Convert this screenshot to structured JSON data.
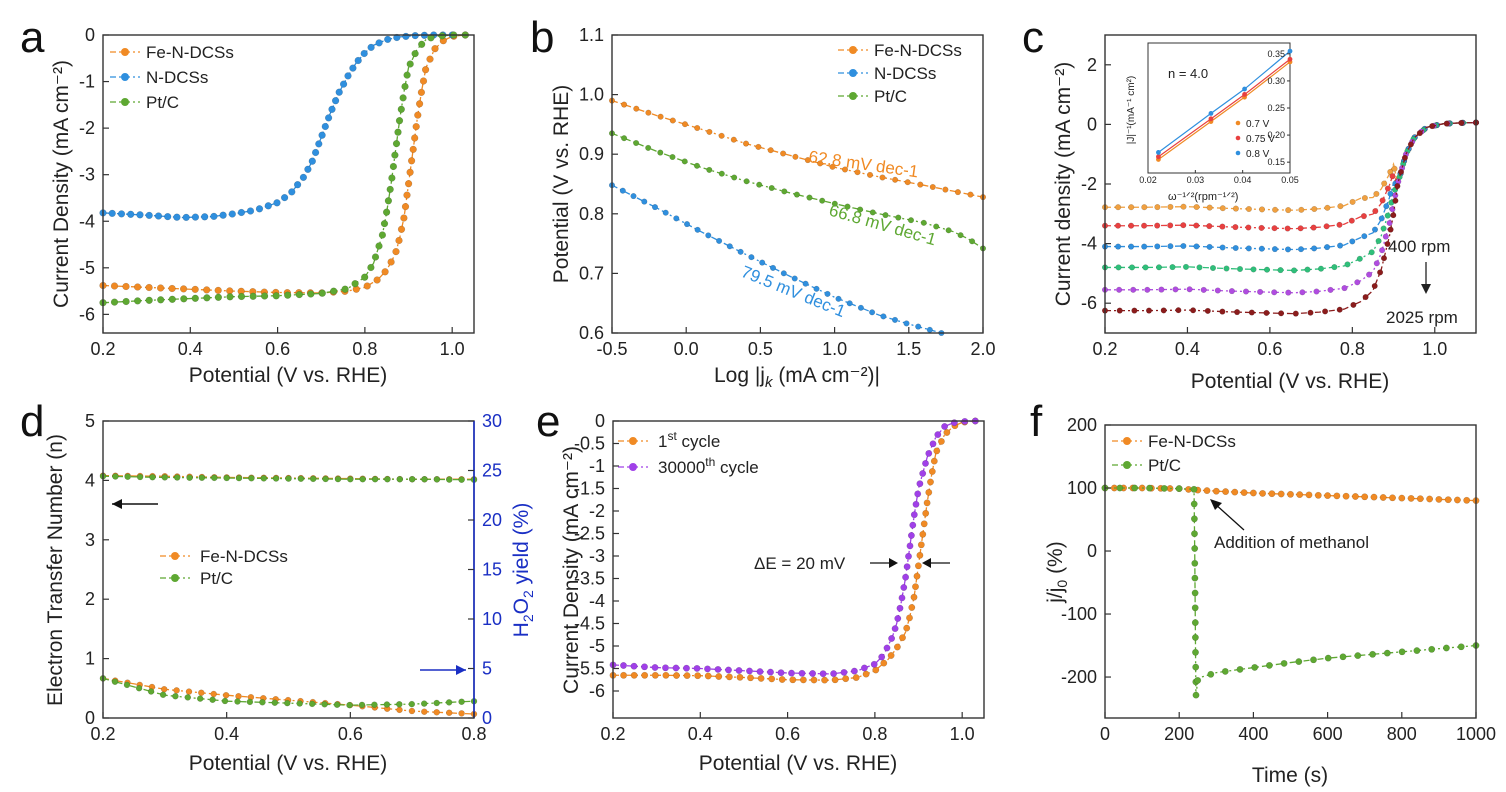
{
  "colors": {
    "fe": "#f08a24",
    "n": "#2f8fde",
    "pt": "#5ea832",
    "orange": "#f08a24",
    "purple": "#a040e8",
    "blue_axis": "#1a2fc4",
    "c_series": [
      "#f0a040",
      "#e84040",
      "#2f8fde",
      "#2fbf7a",
      "#b04ce0",
      "#8b1c1c"
    ],
    "inset": [
      "#f08a24",
      "#e84040",
      "#2f8fde"
    ]
  },
  "chart_data": [
    {
      "panel": "a",
      "type": "line",
      "xlabel": "Potential (V vs. RHE)",
      "ylabel": "Current Density (mA cm⁻²)",
      "xlim": [
        0.2,
        1.05
      ],
      "ylim": [
        -6.4,
        0
      ],
      "xticks": [
        "0.2",
        "0.4",
        "0.6",
        "0.8",
        "1.0"
      ],
      "yticks": [
        "0",
        "-1",
        "-2",
        "-3",
        "-4",
        "-5",
        "-6"
      ],
      "series": [
        {
          "name": "Fe-N-DCSs",
          "color": "fe",
          "x": [
            0.2,
            0.3,
            0.4,
            0.5,
            0.6,
            0.7,
            0.76,
            0.8,
            0.83,
            0.85,
            0.87,
            0.88,
            0.89,
            0.9,
            0.91,
            0.92,
            0.93,
            0.94,
            0.96,
            0.98,
            1.0,
            1.03
          ],
          "y": [
            -5.38,
            -5.42,
            -5.46,
            -5.5,
            -5.53,
            -5.54,
            -5.5,
            -5.42,
            -5.25,
            -5.05,
            -4.7,
            -4.35,
            -3.9,
            -3.2,
            -2.5,
            -1.8,
            -1.2,
            -0.7,
            -0.3,
            -0.12,
            -0.03,
            0
          ]
        },
        {
          "name": "N-DCSs",
          "color": "n",
          "x": [
            0.2,
            0.3,
            0.38,
            0.45,
            0.5,
            0.55,
            0.6,
            0.63,
            0.66,
            0.68,
            0.7,
            0.72,
            0.74,
            0.76,
            0.78,
            0.8,
            0.82,
            0.85,
            0.88,
            0.92,
            0.96,
            1.0
          ],
          "y": [
            -3.82,
            -3.87,
            -3.92,
            -3.9,
            -3.84,
            -3.76,
            -3.6,
            -3.4,
            -3.05,
            -2.7,
            -2.2,
            -1.7,
            -1.25,
            -0.9,
            -0.6,
            -0.38,
            -0.22,
            -0.1,
            -0.04,
            -0.01,
            0,
            0
          ]
        },
        {
          "name": "Pt/C",
          "color": "pt",
          "x": [
            0.2,
            0.3,
            0.4,
            0.5,
            0.6,
            0.7,
            0.76,
            0.8,
            0.82,
            0.84,
            0.85,
            0.86,
            0.87,
            0.88,
            0.89,
            0.9,
            0.92,
            0.94,
            0.96,
            1.0,
            1.03
          ],
          "y": [
            -5.75,
            -5.7,
            -5.66,
            -5.62,
            -5.6,
            -5.55,
            -5.45,
            -5.2,
            -4.9,
            -4.3,
            -3.8,
            -3.2,
            -2.5,
            -1.8,
            -1.2,
            -0.7,
            -0.3,
            -0.1,
            -0.03,
            0,
            0
          ]
        }
      ]
    },
    {
      "panel": "b",
      "type": "line",
      "xlabel": "Log |j",
      "xlabel_sub": "k",
      "xlabel_tail": " (mA cm⁻²)|",
      "ylabel": "Potential (V vs. RHE)",
      "xlim": [
        -0.5,
        2.0
      ],
      "ylim": [
        0.6,
        1.1
      ],
      "xticks": [
        "-0.5",
        "0.0",
        "0.5",
        "1.0",
        "1.5",
        "2.0"
      ],
      "yticks": [
        "0.6",
        "0.7",
        "0.8",
        "0.9",
        "1.0",
        "1.1"
      ],
      "annotations": [
        "62.8 mV dec-1",
        "66.8 mV dec-1",
        "79.5 mV dec-1"
      ],
      "series": [
        {
          "name": "Fe-N-DCSs",
          "color": "fe",
          "x": [
            -0.5,
            -0.2,
            0.1,
            0.4,
            0.7,
            1.0,
            1.3,
            1.6,
            1.8,
            2.0
          ],
          "y": [
            0.99,
            0.965,
            0.942,
            0.918,
            0.898,
            0.878,
            0.862,
            0.848,
            0.838,
            0.828
          ]
        },
        {
          "name": "N-DCSs",
          "color": "n",
          "x": [
            -0.5,
            -0.2,
            0.1,
            0.4,
            0.7,
            1.0,
            1.3,
            1.5,
            1.72
          ],
          "y": [
            0.848,
            0.81,
            0.77,
            0.732,
            0.695,
            0.66,
            0.63,
            0.615,
            0.6
          ]
        },
        {
          "name": "Pt/C",
          "color": "pt",
          "x": [
            -0.5,
            -0.2,
            0.1,
            0.4,
            0.7,
            1.0,
            1.3,
            1.6,
            1.8,
            1.9,
            2.0
          ],
          "y": [
            0.935,
            0.905,
            0.878,
            0.855,
            0.835,
            0.817,
            0.8,
            0.785,
            0.77,
            0.758,
            0.742
          ]
        }
      ]
    },
    {
      "panel": "c",
      "type": "line",
      "xlabel": "Potential (V vs. RHE)",
      "ylabel": "Current density (mA cm⁻²)",
      "xlim": [
        0.2,
        1.1
      ],
      "ylim": [
        -7,
        3
      ],
      "xticks": [
        "0.2",
        "0.4",
        "0.6",
        "0.8",
        "1.0"
      ],
      "yticks": [
        "2",
        "0",
        "-2",
        "-4",
        "-6"
      ],
      "ytick_values": [
        2,
        0,
        -2,
        -4,
        -6
      ],
      "annotations": [
        "400 rpm",
        "2025 rpm"
      ],
      "plateaus": [
        -2.78,
        -3.4,
        -4.1,
        -4.8,
        -5.55,
        -6.25
      ],
      "inset": {
        "title": "n = 4.0",
        "xlabel": "ω⁻¹ᐟ²(rpm⁻¹ᐟ²)",
        "ylabel": "|J|⁻¹(mA⁻¹ cm²)",
        "xlim": [
          0.02,
          0.05
        ],
        "ylim": [
          0.13,
          0.37
        ],
        "xticks": [
          "0.02",
          "0.03",
          "0.04",
          "0.05"
        ],
        "yticks": [
          "0.15",
          "0.20",
          "0.25",
          "0.30",
          "0.35"
        ],
        "series": [
          {
            "name": "0.7 V",
            "x": [
              0.0222,
              0.0333,
              0.0404,
              0.05
            ],
            "y": [
              0.155,
              0.225,
              0.27,
              0.335
            ]
          },
          {
            "name": "0.75 V",
            "x": [
              0.0222,
              0.0333,
              0.0404,
              0.05
            ],
            "y": [
              0.16,
              0.23,
              0.275,
              0.34
            ]
          },
          {
            "name": "0.8 V",
            "x": [
              0.0222,
              0.0333,
              0.0404,
              0.05
            ],
            "y": [
              0.168,
              0.24,
              0.285,
              0.355
            ]
          }
        ]
      }
    },
    {
      "panel": "d",
      "type": "line",
      "xlabel": "Potential (V vs. RHE)",
      "ylabel": "Electron Transfer Number (n)",
      "ylabel2_pre": "H",
      "ylabel2_sub1": "2",
      "ylabel2_mid": "O",
      "ylabel2_sub2": "2",
      "ylabel2_post": " yield (%)",
      "xlim": [
        0.2,
        0.8
      ],
      "ylim": [
        0,
        5
      ],
      "ylim2": [
        0,
        30
      ],
      "xticks": [
        "0.2",
        "0.4",
        "0.6",
        "0.8"
      ],
      "yticks": [
        "0",
        "1",
        "2",
        "3",
        "4",
        "5"
      ],
      "yticks2": [
        "0",
        "5",
        "10",
        "15",
        "20",
        "25",
        "30"
      ],
      "series": [
        {
          "name": "Fe-N-DCSs",
          "color": "fe",
          "axis": "left",
          "x": [
            0.2,
            0.3,
            0.4,
            0.5,
            0.6,
            0.7,
            0.8
          ],
          "y": [
            4.08,
            4.07,
            4.05,
            4.04,
            4.03,
            4.02,
            4.02
          ]
        },
        {
          "name": "Pt/C",
          "color": "pt",
          "axis": "left",
          "x": [
            0.2,
            0.3,
            0.4,
            0.5,
            0.6,
            0.7,
            0.8
          ],
          "y": [
            4.07,
            4.05,
            4.04,
            4.03,
            4.02,
            4.02,
            4.01
          ]
        },
        {
          "name": "Fe-N-DCSs",
          "color": "fe",
          "axis": "right",
          "x": [
            0.2,
            0.3,
            0.4,
            0.5,
            0.6,
            0.7,
            0.8
          ],
          "y": [
            4.0,
            2.9,
            2.3,
            1.8,
            1.3,
            0.7,
            0.4
          ]
        },
        {
          "name": "Pt/C",
          "color": "pt",
          "axis": "right",
          "x": [
            0.2,
            0.3,
            0.4,
            0.5,
            0.6,
            0.7,
            0.8
          ],
          "y": [
            4.0,
            2.3,
            1.7,
            1.5,
            1.3,
            1.4,
            1.7
          ]
        }
      ]
    },
    {
      "panel": "e",
      "type": "line",
      "xlabel": "Potential (V vs. RHE)",
      "ylabel": "Current Density (mA cm⁻²)",
      "xlim": [
        0.2,
        1.05
      ],
      "ylim": [
        -6.6,
        0
      ],
      "xticks": [
        "0.2",
        "0.4",
        "0.6",
        "0.8",
        "1.0"
      ],
      "yticks": [
        "0",
        "-0.5",
        "-1",
        "-1.5",
        "-2",
        "-2.5",
        "-3",
        "-3.5",
        "-4",
        "-4.5",
        "-5",
        "-5.5",
        "-6"
      ],
      "annotations": [
        "ΔE = 20 mV"
      ],
      "series": [
        {
          "name_pre": "1",
          "name_sup": "st",
          "name_post": " cycle",
          "color": "orange",
          "x": [
            0.2,
            0.3,
            0.4,
            0.5,
            0.6,
            0.7,
            0.76,
            0.8,
            0.83,
            0.85,
            0.87,
            0.88,
            0.89,
            0.9,
            0.91,
            0.92,
            0.93,
            0.94,
            0.96,
            0.98,
            1.0,
            1.03
          ],
          "y": [
            -5.65,
            -5.65,
            -5.66,
            -5.7,
            -5.75,
            -5.76,
            -5.7,
            -5.55,
            -5.3,
            -5.05,
            -4.7,
            -4.35,
            -3.9,
            -3.2,
            -2.5,
            -1.8,
            -1.2,
            -0.7,
            -0.3,
            -0.12,
            -0.03,
            0
          ]
        },
        {
          "name_pre": "30000",
          "name_sup": "th",
          "name_post": " cycle",
          "color": "purple",
          "x": [
            0.2,
            0.3,
            0.4,
            0.5,
            0.6,
            0.7,
            0.76,
            0.8,
            0.82,
            0.84,
            0.85,
            0.86,
            0.87,
            0.88,
            0.89,
            0.9,
            0.92,
            0.94,
            0.96,
            0.98,
            1.0,
            1.03
          ],
          "y": [
            -5.42,
            -5.48,
            -5.5,
            -5.55,
            -5.6,
            -5.62,
            -5.55,
            -5.4,
            -5.2,
            -4.8,
            -4.5,
            -4.05,
            -3.5,
            -2.8,
            -2.1,
            -1.5,
            -0.8,
            -0.35,
            -0.12,
            -0.04,
            -0.01,
            0
          ]
        }
      ]
    },
    {
      "panel": "f",
      "type": "line",
      "xlabel": "Time (s)",
      "ylabel_pre": "j/j",
      "ylabel_sub": "0",
      "ylabel_post": " (%)",
      "xlim": [
        0,
        1000
      ],
      "ylim": [
        -265,
        200
      ],
      "xticks": [
        "0",
        "200",
        "400",
        "600",
        "800",
        "1000"
      ],
      "yticks": [
        "200",
        "100",
        "0",
        "-100",
        "-200"
      ],
      "ytick_values": [
        200,
        100,
        0,
        -100,
        -200
      ],
      "annotations": [
        "Addition of methanol"
      ],
      "series": [
        {
          "name": "Fe-N-DCSs",
          "color": "fe",
          "x": [
            0,
            100,
            200,
            240,
            300,
            400,
            500,
            600,
            700,
            800,
            900,
            1000
          ],
          "y": [
            100,
            100,
            99,
            97,
            95,
            92,
            90,
            88,
            86,
            84,
            82,
            80
          ]
        },
        {
          "name": "Pt/C",
          "color": "pt",
          "x": [
            0,
            100,
            200,
            240,
            242,
            245,
            250,
            260,
            300,
            400,
            500,
            600,
            700,
            800,
            900,
            1000
          ],
          "y": [
            100,
            100,
            99,
            98,
            -10,
            -230,
            -205,
            -200,
            -193,
            -185,
            -177,
            -170,
            -165,
            -160,
            -155,
            -150
          ]
        }
      ]
    }
  ],
  "labels": {
    "letters": [
      "a",
      "b",
      "c",
      "d",
      "e",
      "f"
    ]
  }
}
